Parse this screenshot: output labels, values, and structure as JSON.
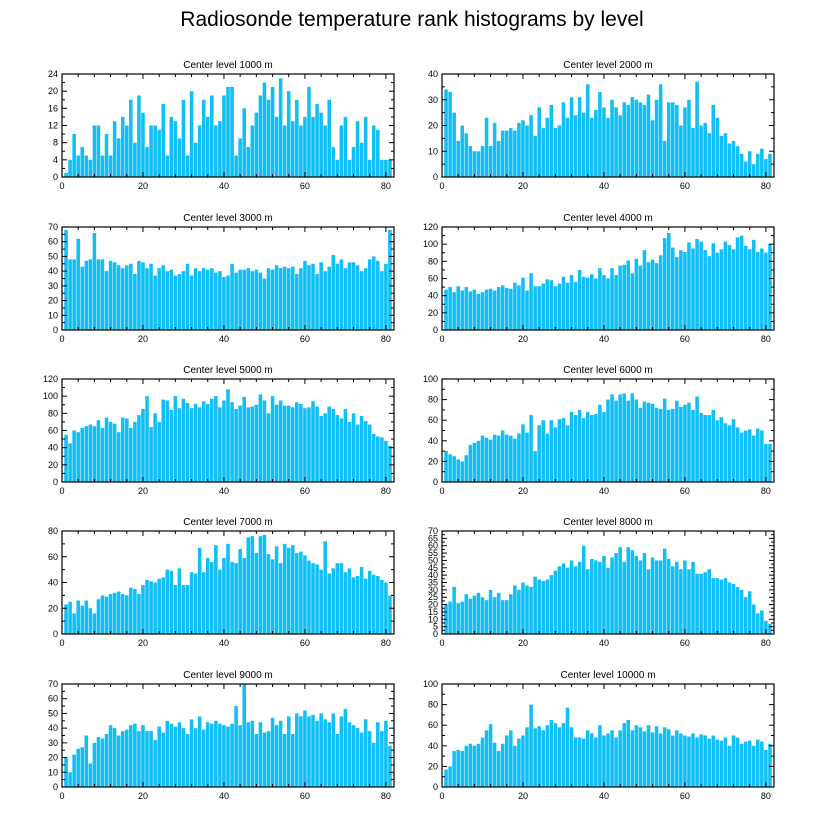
{
  "page": {
    "title": "Radiosonde temperature rank histograms by level"
  },
  "colors": {
    "bar": "#10BFF4",
    "bar_stroke": "#0aa4d6",
    "axis": "#000000",
    "background": "#ffffff"
  },
  "chart_data": [
    {
      "type": "bar",
      "title": "Center level 1000 m",
      "xlim": [
        0,
        82
      ],
      "ylim": [
        0,
        24
      ],
      "xticks": [
        0,
        20,
        40,
        60,
        80
      ],
      "yticks": [
        0,
        4,
        8,
        12,
        16,
        20,
        24
      ],
      "x_start": 1,
      "values": [
        1,
        4,
        10,
        5,
        7,
        5,
        4,
        12,
        12,
        5,
        10,
        5,
        13,
        9,
        14,
        12,
        18,
        8,
        19,
        15,
        7,
        12,
        12,
        11,
        17,
        5,
        14,
        13,
        9,
        18,
        5,
        20,
        8,
        12,
        18,
        14,
        19,
        12,
        13,
        19,
        21,
        21,
        5,
        9,
        16,
        7,
        12,
        15,
        19,
        22,
        18,
        21,
        14,
        23,
        12,
        20,
        13,
        18,
        12,
        14,
        21,
        14,
        17,
        15,
        12,
        18,
        7,
        4,
        12,
        14,
        4,
        7,
        13,
        8,
        14,
        4,
        12,
        11,
        4,
        4,
        4
      ]
    },
    {
      "type": "bar",
      "title": "Center level 2000 m",
      "xlim": [
        0,
        82
      ],
      "ylim": [
        0,
        40
      ],
      "xticks": [
        0,
        20,
        40,
        60,
        80
      ],
      "yticks": [
        0,
        10,
        20,
        30,
        40
      ],
      "x_start": 1,
      "values": [
        34,
        33,
        25,
        14,
        20,
        17,
        12,
        10,
        10,
        12,
        23,
        12,
        21,
        14,
        18,
        18,
        19,
        18,
        21,
        22,
        20,
        24,
        16,
        27,
        19,
        23,
        28,
        19,
        20,
        29,
        23,
        31,
        24,
        31,
        25,
        36,
        23,
        26,
        33,
        27,
        23,
        30,
        27,
        24,
        29,
        28,
        31,
        30,
        29,
        28,
        32,
        22,
        30,
        36,
        14,
        29,
        29,
        28,
        20,
        27,
        30,
        19,
        37,
        20,
        21,
        17,
        28,
        23,
        16,
        17,
        13,
        14,
        12,
        9,
        6,
        10,
        5,
        9,
        11,
        7,
        9
      ]
    },
    {
      "type": "bar",
      "title": "Center level 3000 m",
      "xlim": [
        0,
        82
      ],
      "ylim": [
        0,
        70
      ],
      "xticks": [
        0,
        20,
        40,
        60,
        80
      ],
      "yticks": [
        0,
        10,
        20,
        30,
        40,
        50,
        60,
        70
      ],
      "x_start": 1,
      "values": [
        68,
        48,
        48,
        62,
        43,
        47,
        48,
        66,
        48,
        48,
        40,
        47,
        46,
        44,
        42,
        44,
        45,
        38,
        47,
        46,
        42,
        45,
        37,
        42,
        44,
        40,
        41,
        37,
        38,
        40,
        45,
        37,
        42,
        40,
        42,
        41,
        42,
        39,
        40,
        36,
        37,
        45,
        39,
        41,
        41,
        42,
        40,
        41,
        39,
        35,
        42,
        41,
        44,
        42,
        43,
        42,
        43,
        38,
        42,
        47,
        44,
        45,
        38,
        46,
        40,
        43,
        51,
        45,
        48,
        42,
        46,
        46,
        44,
        40,
        42,
        48,
        50,
        47,
        40,
        45,
        68
      ]
    },
    {
      "type": "bar",
      "title": "Center level 4000 m",
      "xlim": [
        0,
        82
      ],
      "ylim": [
        0,
        120
      ],
      "xticks": [
        0,
        20,
        40,
        60,
        80
      ],
      "yticks": [
        0,
        20,
        40,
        60,
        80,
        100,
        120
      ],
      "x_start": 1,
      "values": [
        47,
        50,
        44,
        51,
        46,
        50,
        45,
        47,
        42,
        44,
        47,
        48,
        46,
        50,
        52,
        49,
        48,
        55,
        52,
        61,
        46,
        66,
        51,
        51,
        54,
        59,
        58,
        51,
        54,
        62,
        55,
        64,
        56,
        70,
        62,
        61,
        65,
        60,
        72,
        64,
        60,
        72,
        64,
        75,
        76,
        81,
        66,
        83,
        75,
        93,
        79,
        82,
        78,
        87,
        107,
        113,
        96,
        85,
        93,
        91,
        102,
        95,
        106,
        103,
        93,
        86,
        101,
        90,
        94,
        103,
        99,
        94,
        108,
        110,
        98,
        94,
        105,
        91,
        95,
        90,
        100
      ]
    },
    {
      "type": "bar",
      "title": "Center level 5000 m",
      "xlim": [
        0,
        82
      ],
      "ylim": [
        0,
        120
      ],
      "xticks": [
        0,
        20,
        40,
        60,
        80
      ],
      "yticks": [
        0,
        20,
        40,
        60,
        80,
        100,
        120
      ],
      "x_start": 1,
      "values": [
        55,
        45,
        60,
        58,
        63,
        65,
        67,
        65,
        72,
        63,
        75,
        70,
        68,
        58,
        75,
        74,
        63,
        70,
        78,
        85,
        100,
        64,
        80,
        70,
        96,
        95,
        84,
        100,
        86,
        97,
        92,
        86,
        91,
        87,
        94,
        91,
        97,
        100,
        87,
        95,
        108,
        93,
        85,
        89,
        99,
        87,
        88,
        90,
        102,
        95,
        80,
        100,
        90,
        95,
        89,
        89,
        87,
        93,
        91,
        86,
        87,
        94,
        88,
        77,
        80,
        88,
        85,
        78,
        74,
        85,
        70,
        80,
        67,
        77,
        71,
        67,
        56,
        53,
        52,
        48,
        42
      ]
    },
    {
      "type": "bar",
      "title": "Center level 6000 m",
      "xlim": [
        0,
        82
      ],
      "ylim": [
        0,
        100
      ],
      "xticks": [
        0,
        20,
        40,
        60,
        80
      ],
      "yticks": [
        0,
        20,
        40,
        60,
        80,
        100
      ],
      "x_start": 1,
      "values": [
        30,
        27,
        25,
        22,
        20,
        26,
        36,
        38,
        40,
        45,
        43,
        41,
        46,
        45,
        50,
        46,
        45,
        42,
        47,
        56,
        48,
        65,
        30,
        55,
        60,
        47,
        60,
        53,
        61,
        62,
        55,
        68,
        65,
        70,
        62,
        68,
        65,
        66,
        75,
        68,
        80,
        85,
        79,
        85,
        86,
        79,
        86,
        80,
        72,
        78,
        77,
        76,
        72,
        71,
        81,
        70,
        71,
        79,
        73,
        75,
        77,
        70,
        83,
        67,
        65,
        65,
        70,
        60,
        63,
        57,
        55,
        61,
        53,
        48,
        50,
        51,
        45,
        52,
        50,
        37,
        37
      ]
    },
    {
      "type": "bar",
      "title": "Center level 7000 m",
      "xlim": [
        0,
        82
      ],
      "ylim": [
        0,
        80
      ],
      "xticks": [
        0,
        20,
        40,
        60,
        80
      ],
      "yticks": [
        0,
        20,
        40,
        60,
        80
      ],
      "x_start": 1,
      "values": [
        23,
        25,
        16,
        26,
        22,
        26,
        20,
        16,
        27,
        30,
        29,
        31,
        32,
        33,
        31,
        30,
        36,
        35,
        31,
        38,
        42,
        41,
        40,
        43,
        44,
        50,
        49,
        38,
        51,
        38,
        38,
        48,
        47,
        67,
        48,
        59,
        56,
        69,
        50,
        59,
        70,
        56,
        55,
        66,
        59,
        75,
        76,
        63,
        76,
        77,
        62,
        58,
        68,
        55,
        70,
        67,
        69,
        63,
        64,
        61,
        57,
        55,
        54,
        50,
        72,
        47,
        51,
        55,
        55,
        48,
        51,
        44,
        45,
        52,
        43,
        49,
        46,
        45,
        42,
        40,
        30
      ]
    },
    {
      "type": "bar",
      "title": "Center level 8000 m",
      "xlim": [
        0,
        82
      ],
      "ylim": [
        0,
        70
      ],
      "xticks": [
        0,
        20,
        40,
        60,
        80
      ],
      "yticks": [
        0,
        5,
        10,
        15,
        20,
        25,
        30,
        35,
        40,
        45,
        50,
        55,
        60,
        65,
        70
      ],
      "x_start": 1,
      "values": [
        20,
        22,
        32,
        21,
        22,
        27,
        24,
        26,
        28,
        25,
        23,
        30,
        25,
        28,
        23,
        23,
        27,
        33,
        30,
        35,
        33,
        32,
        39,
        37,
        36,
        37,
        40,
        43,
        46,
        48,
        45,
        50,
        46,
        49,
        60,
        44,
        51,
        50,
        49,
        53,
        45,
        52,
        55,
        59,
        49,
        59,
        57,
        53,
        50,
        55,
        44,
        52,
        50,
        50,
        58,
        51,
        46,
        49,
        44,
        50,
        44,
        49,
        41,
        41,
        42,
        44,
        38,
        38,
        37,
        38,
        35,
        34,
        32,
        30,
        25,
        29,
        20,
        14,
        16,
        9,
        7
      ]
    },
    {
      "type": "bar",
      "title": "Center level 9000 m",
      "xlim": [
        0,
        82
      ],
      "ylim": [
        0,
        70
      ],
      "xticks": [
        0,
        20,
        40,
        60,
        80
      ],
      "yticks": [
        0,
        10,
        20,
        30,
        40,
        50,
        60,
        70
      ],
      "x_start": 1,
      "values": [
        20,
        10,
        22,
        26,
        27,
        35,
        16,
        30,
        34,
        33,
        36,
        42,
        40,
        35,
        38,
        39,
        42,
        43,
        38,
        42,
        38,
        38,
        32,
        41,
        37,
        45,
        43,
        41,
        44,
        40,
        36,
        46,
        40,
        48,
        39,
        44,
        43,
        45,
        43,
        42,
        41,
        43,
        55,
        42,
        70,
        44,
        45,
        36,
        44,
        37,
        38,
        47,
        42,
        45,
        36,
        48,
        36,
        50,
        48,
        52,
        48,
        49,
        45,
        50,
        46,
        44,
        50,
        36,
        48,
        53,
        44,
        42,
        40,
        37,
        46,
        38,
        30,
        44,
        38,
        45,
        28
      ]
    },
    {
      "type": "bar",
      "title": "Center level 10000 m",
      "xlim": [
        0,
        82
      ],
      "ylim": [
        0,
        100
      ],
      "xticks": [
        0,
        20,
        40,
        60,
        80
      ],
      "yticks": [
        0,
        20,
        40,
        60,
        80,
        100
      ],
      "x_start": 1,
      "values": [
        17,
        20,
        35,
        36,
        35,
        40,
        42,
        40,
        42,
        48,
        55,
        61,
        43,
        35,
        42,
        50,
        55,
        40,
        47,
        50,
        58,
        80,
        57,
        59,
        55,
        60,
        65,
        62,
        58,
        62,
        77,
        58,
        48,
        48,
        47,
        55,
        52,
        48,
        60,
        50,
        52,
        55,
        48,
        55,
        62,
        65,
        55,
        60,
        58,
        54,
        60,
        53,
        59,
        52,
        58,
        56,
        50,
        55,
        52,
        50,
        49,
        52,
        48,
        51,
        50,
        47,
        50,
        46,
        45,
        48,
        40,
        50,
        48,
        42,
        44,
        45,
        40,
        46,
        44,
        36,
        42
      ]
    }
  ]
}
